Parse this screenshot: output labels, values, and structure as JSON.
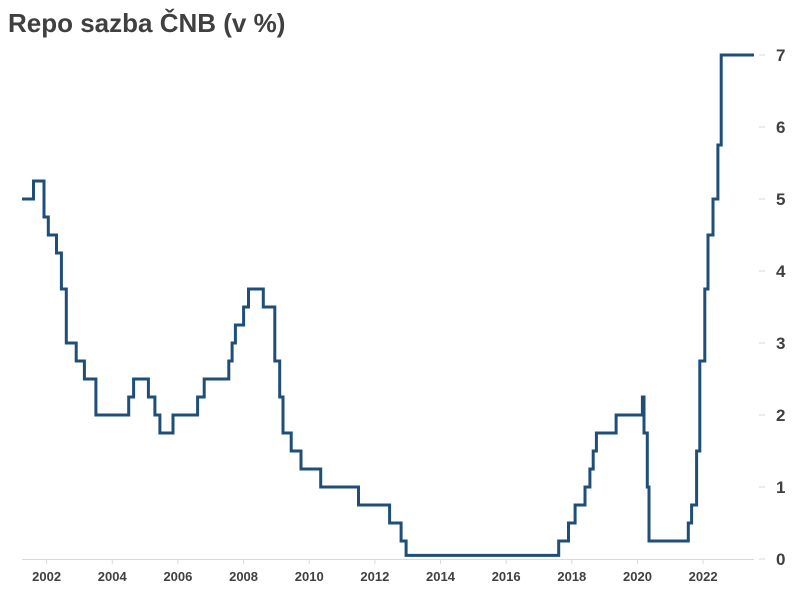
{
  "chart_data": {
    "type": "line",
    "title": "Repo sazba ČNB (v %)",
    "xlabel": "",
    "ylabel": "",
    "xlim": [
      2001.25,
      2023.55
    ],
    "ylim": [
      0,
      7
    ],
    "x_ticks": [
      2002,
      2004,
      2006,
      2008,
      2010,
      2012,
      2014,
      2016,
      2018,
      2020,
      2022
    ],
    "y_ticks": [
      0,
      1,
      2,
      3,
      4,
      5,
      6,
      7
    ],
    "x_tick_labels": [
      "2002",
      "2004",
      "2006",
      "2008",
      "2010",
      "2012",
      "2014",
      "2016",
      "2018",
      "2020",
      "2022"
    ],
    "y_tick_labels": [
      "0",
      "1",
      "2",
      "3",
      "4",
      "5",
      "6",
      "7"
    ],
    "grid": false,
    "legend": "none",
    "step": "post",
    "color": "#1f4e79",
    "series": [
      {
        "x": [
          2001.25,
          2001.6,
          2001.92,
          2002.05,
          2002.3,
          2002.45,
          2002.6,
          2002.9,
          2003.15,
          2003.5,
          2004.5,
          2004.65,
          2005.1,
          2005.3,
          2005.45,
          2005.55,
          2005.85,
          2006.6,
          2006.8,
          2007.55,
          2007.65,
          2007.75,
          2008.0,
          2008.15,
          2008.6,
          2008.95,
          2009.1,
          2009.2,
          2009.45,
          2009.75,
          2010.35,
          2011.5,
          2012.45,
          2012.8,
          2012.95,
          2017.6,
          2017.9,
          2018.1,
          2018.4,
          2018.55,
          2018.65,
          2018.75,
          2019.35,
          2020.15,
          2020.2,
          2020.3,
          2020.35,
          2021.55,
          2021.65,
          2021.8,
          2021.9,
          2022.05,
          2022.15,
          2022.3,
          2022.45,
          2022.55,
          2023.55
        ],
        "y": [
          5.0,
          5.25,
          4.75,
          4.5,
          4.25,
          3.75,
          3.0,
          2.75,
          2.5,
          2.0,
          2.25,
          2.5,
          2.25,
          2.0,
          1.75,
          1.75,
          2.0,
          2.25,
          2.5,
          2.75,
          3.0,
          3.25,
          3.5,
          3.75,
          3.5,
          2.75,
          2.25,
          1.75,
          1.5,
          1.25,
          1.0,
          0.75,
          0.5,
          0.25,
          0.05,
          0.25,
          0.5,
          0.75,
          1.0,
          1.25,
          1.5,
          1.75,
          2.0,
          2.25,
          1.75,
          1.0,
          0.25,
          0.5,
          0.75,
          1.5,
          2.75,
          3.75,
          4.5,
          5.0,
          5.75,
          7.0,
          7.0
        ]
      }
    ]
  }
}
